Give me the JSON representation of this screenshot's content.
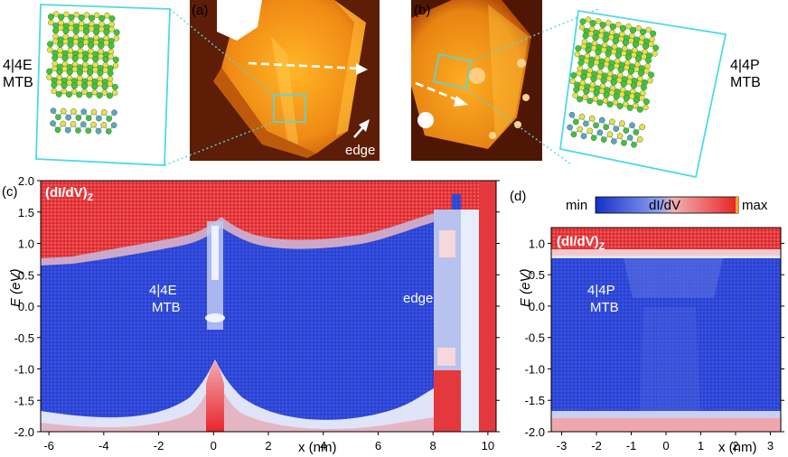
{
  "panels": {
    "a": {
      "tag": "(a)",
      "structure_label_line1": "4|4E",
      "structure_label_line2": "MTB",
      "edge_label": "edge"
    },
    "b": {
      "tag": "(b)",
      "structure_label_line1": "4|4P",
      "structure_label_line2": "MTB"
    },
    "c": {
      "tag": "(c)",
      "map_label": "(dI/dV)",
      "map_label_subscript": "Z",
      "region_label_line1": "4|4E",
      "region_label_line2": "MTB",
      "edge_label": "edge",
      "ylabel": "E (eV)",
      "xlabel": "x (nm)",
      "yticks": [
        "-2.0",
        "-1.5",
        "-1.0",
        "-0.5",
        "0.0",
        "0.5",
        "1.0",
        "1.5",
        "2.0"
      ],
      "xticks": [
        "-6",
        "-4",
        "-2",
        "0",
        "2",
        "4",
        "6",
        "8",
        "10"
      ]
    },
    "d": {
      "tag": "(d)",
      "map_label": "(dI/dV)",
      "map_label_subscript": "Z",
      "region_label_line1": "4|4P",
      "region_label_line2": "MTB",
      "ylabel": "E (eV)",
      "xlabel": "x (nm)",
      "yticks": [
        "-2.0",
        "-1.5",
        "-1.0",
        "-0.5",
        "0.0",
        "0.5",
        "1.0"
      ],
      "xticks": [
        "-3",
        "-2",
        "-1",
        "0",
        "1",
        "2",
        "3"
      ],
      "colorbar_min": "min",
      "colorbar_title": "dI/dV",
      "colorbar_max": "max"
    }
  },
  "colors": {
    "gap_blue": "#2f47d8",
    "band_red": "#e8333a",
    "stm_orange": "#f29a1b",
    "stm_dark": "#5a1a06",
    "frame_cyan": "#4fd9e6"
  }
}
